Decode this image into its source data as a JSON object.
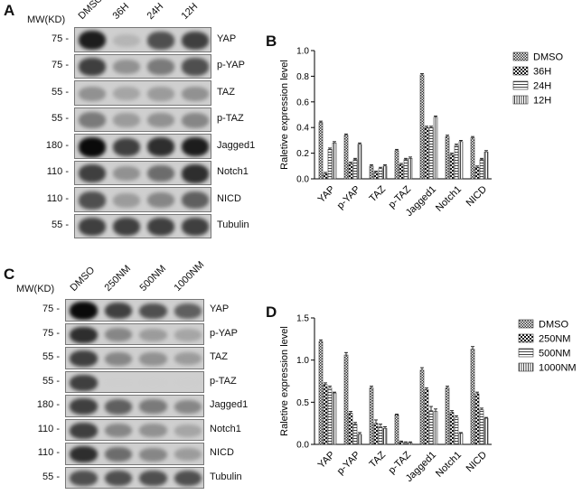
{
  "panels": {
    "A": {
      "letter": "A",
      "mw_header": "MW(KD)",
      "columns": [
        "DMSO",
        "36H",
        "24H",
        "12H"
      ],
      "rows": [
        {
          "mw": "75 -",
          "protein": "YAP",
          "intensity": [
            0.95,
            0.35,
            0.8,
            0.85
          ]
        },
        {
          "mw": "75 -",
          "protein": "p-YAP",
          "intensity": [
            0.85,
            0.55,
            0.65,
            0.8
          ]
        },
        {
          "mw": "55 -",
          "protein": "TAZ",
          "intensity": [
            0.55,
            0.45,
            0.5,
            0.55
          ]
        },
        {
          "mw": "55 -",
          "protein": "p-TAZ",
          "intensity": [
            0.65,
            0.5,
            0.55,
            0.6
          ]
        },
        {
          "mw": "180 -",
          "protein": "Jagged1",
          "intensity": [
            1.0,
            0.85,
            0.9,
            0.95
          ]
        },
        {
          "mw": "110 -",
          "protein": "Notch1",
          "intensity": [
            0.85,
            0.55,
            0.7,
            0.9
          ]
        },
        {
          "mw": "110 -",
          "protein": "NICD",
          "intensity": [
            0.8,
            0.5,
            0.6,
            0.75
          ]
        },
        {
          "mw": "55 -",
          "protein": "Tubulin",
          "intensity": [
            0.85,
            0.85,
            0.85,
            0.85
          ]
        }
      ]
    },
    "C": {
      "letter": "C",
      "mw_header": "MW(KD)",
      "columns": [
        "DMSO",
        "250NM",
        "500NM",
        "1000NM"
      ],
      "rows": [
        {
          "mw": "75 -",
          "protein": "YAP",
          "intensity": [
            1.0,
            0.85,
            0.8,
            0.75
          ]
        },
        {
          "mw": "75 -",
          "protein": "p-YAP",
          "intensity": [
            0.9,
            0.6,
            0.5,
            0.45
          ]
        },
        {
          "mw": "55 -",
          "protein": "TAZ",
          "intensity": [
            0.85,
            0.6,
            0.55,
            0.5
          ]
        },
        {
          "mw": "55 -",
          "protein": "p-TAZ",
          "intensity": [
            0.85,
            0.05,
            0.03,
            0.02
          ]
        },
        {
          "mw": "180 -",
          "protein": "Jagged1",
          "intensity": [
            0.85,
            0.75,
            0.65,
            0.6
          ]
        },
        {
          "mw": "110 -",
          "protein": "Notch1",
          "intensity": [
            0.85,
            0.6,
            0.55,
            0.45
          ]
        },
        {
          "mw": "110 -",
          "protein": "NICD",
          "intensity": [
            0.9,
            0.7,
            0.6,
            0.5
          ]
        },
        {
          "mw": "55 -",
          "protein": "Tubulin",
          "intensity": [
            0.8,
            0.8,
            0.8,
            0.8
          ]
        }
      ]
    },
    "B": {
      "letter": "B"
    },
    "D": {
      "letter": "D"
    }
  },
  "chart_data": [
    {
      "panel": "B",
      "type": "bar",
      "ylabel": "Raletive expression level",
      "ylim": [
        0,
        1.0
      ],
      "yticks": [
        "0.0",
        "0.2",
        "0.4",
        "0.6",
        "0.8",
        "1.0"
      ],
      "categories": [
        "YAP",
        "p-YAP",
        "TAZ",
        "p-TAZ",
        "Jagged1",
        "Notch1",
        "NICD"
      ],
      "series": [
        {
          "name": "DMSO",
          "values": [
            0.44,
            0.34,
            0.1,
            0.22,
            0.81,
            0.33,
            0.32
          ],
          "errors": [
            0.01,
            0.01,
            0.01,
            0.01,
            0.01,
            0.01,
            0.01
          ]
        },
        {
          "name": "36H",
          "values": [
            0.04,
            0.12,
            0.05,
            0.11,
            0.4,
            0.19,
            0.09
          ],
          "errors": [
            0.01,
            0.01,
            0.01,
            0.01,
            0.01,
            0.01,
            0.01
          ]
        },
        {
          "name": "24H",
          "values": [
            0.23,
            0.15,
            0.08,
            0.15,
            0.4,
            0.26,
            0.15
          ],
          "errors": [
            0.01,
            0.01,
            0.01,
            0.01,
            0.01,
            0.01,
            0.01
          ]
        },
        {
          "name": "12H",
          "values": [
            0.28,
            0.27,
            0.1,
            0.16,
            0.48,
            0.29,
            0.21
          ],
          "errors": [
            0.01,
            0.01,
            0.01,
            0.01,
            0.01,
            0.01,
            0.01
          ]
        }
      ],
      "legend_position": "top-right"
    },
    {
      "panel": "D",
      "type": "bar",
      "ylabel": "Raletive expression level",
      "ylim": [
        0,
        1.5
      ],
      "yticks": [
        "0.0",
        "0.5",
        "1.0",
        "1.5"
      ],
      "categories": [
        "YAP",
        "p-YAP",
        "TAZ",
        "p-TAZ",
        "Jagged1",
        "Notch1",
        "NICD"
      ],
      "series": [
        {
          "name": "DMSO",
          "values": [
            1.22,
            1.06,
            0.67,
            0.35,
            0.88,
            0.67,
            1.13
          ],
          "errors": [
            0.02,
            0.03,
            0.02,
            0.01,
            0.03,
            0.02,
            0.03
          ]
        },
        {
          "name": "250NM",
          "values": [
            0.71,
            0.37,
            0.25,
            0.03,
            0.65,
            0.38,
            0.6
          ],
          "errors": [
            0.02,
            0.02,
            0.04,
            0.01,
            0.02,
            0.02,
            0.02
          ]
        },
        {
          "name": "500NM",
          "values": [
            0.67,
            0.24,
            0.21,
            0.02,
            0.4,
            0.32,
            0.41
          ],
          "errors": [
            0.02,
            0.02,
            0.03,
            0.01,
            0.05,
            0.02,
            0.02
          ]
        },
        {
          "name": "1000NM",
          "values": [
            0.61,
            0.12,
            0.19,
            0.02,
            0.39,
            0.13,
            0.31
          ],
          "errors": [
            0.01,
            0.02,
            0.02,
            0.01,
            0.03,
            0.01,
            0.01
          ]
        }
      ],
      "legend_position": "top-right"
    }
  ]
}
